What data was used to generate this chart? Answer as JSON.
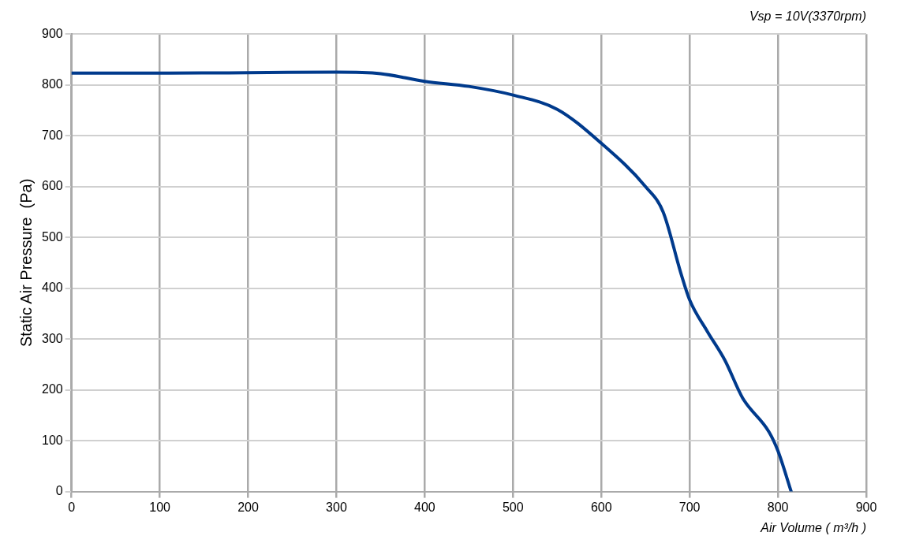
{
  "chart_data": {
    "type": "line",
    "title": "Vsp = 10V(3370rpm)",
    "xlabel": "Air Volume ( m³/h )",
    "ylabel": "Static Air Pressure  (Pa)",
    "x": [
      0,
      100,
      200,
      300,
      350,
      400,
      450,
      500,
      550,
      600,
      650,
      670,
      690,
      700,
      720,
      740,
      760,
      790,
      800,
      815
    ],
    "series": [
      {
        "color": "#003a8c",
        "values": [
          823,
          823,
          824,
          825,
          822,
          807,
          797,
          780,
          752,
          685,
          600,
          550,
          430,
          377,
          315,
          258,
          184,
          117,
          80,
          0
        ]
      }
    ],
    "xlim": [
      0,
      900
    ],
    "xticks": [
      0,
      100,
      200,
      300,
      400,
      500,
      600,
      700,
      800,
      900
    ],
    "ylim": [
      0,
      900
    ],
    "yticks": [
      0,
      100,
      200,
      300,
      400,
      500,
      600,
      700,
      800,
      900
    ],
    "grid": true,
    "legend": false,
    "marker": "none",
    "line_style": "solid"
  }
}
